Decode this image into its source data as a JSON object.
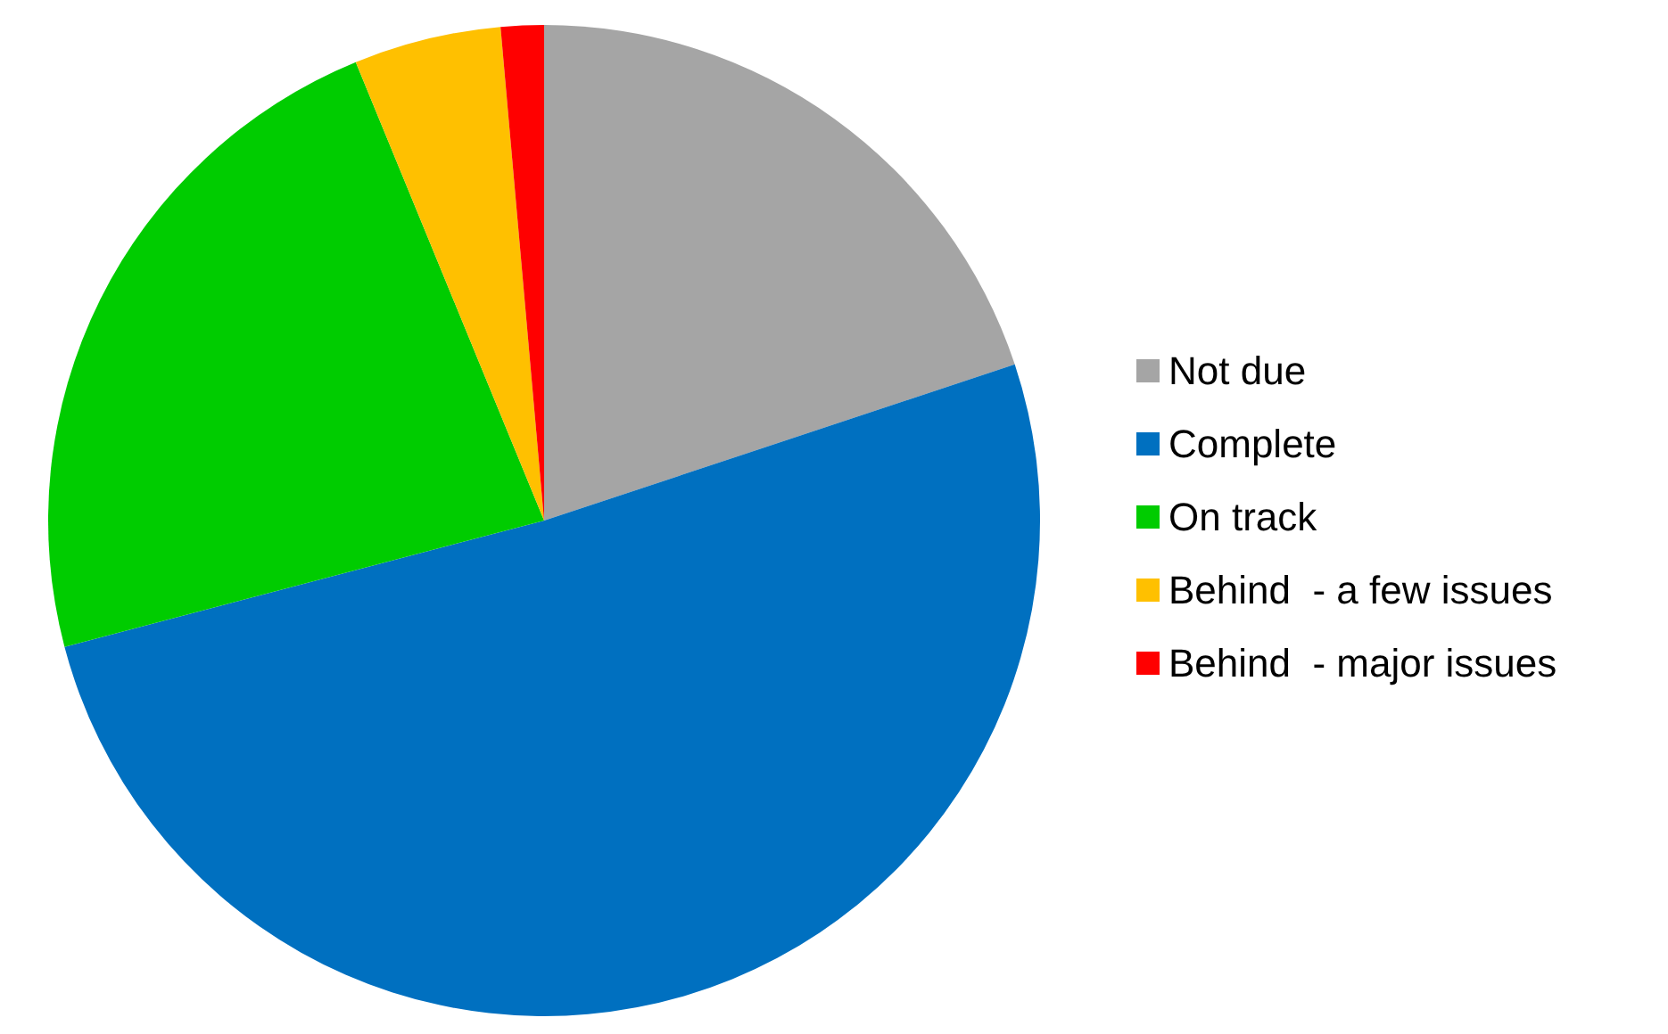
{
  "chart_data": {
    "type": "pie",
    "categories": [
      "Not due",
      "Complete",
      "On track",
      "Behind  - a few issues",
      "Behind  - major issues"
    ],
    "values": [
      19.9,
      51,
      22.9,
      4.8,
      1.4
    ],
    "colors": [
      "#a5a5a5",
      "#0070c0",
      "#00cc00",
      "#ffc000",
      "#ff0000"
    ],
    "legend": "right"
  }
}
